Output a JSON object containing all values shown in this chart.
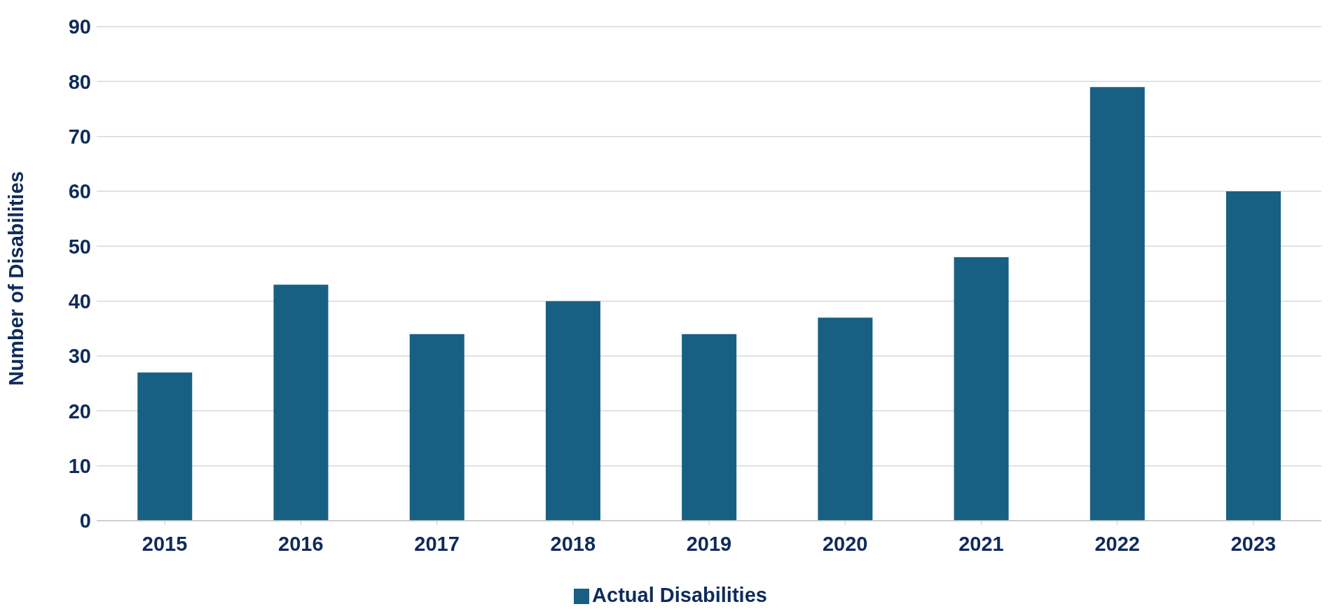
{
  "chart_data": {
    "type": "bar",
    "ylabel": "Number of Disabilities",
    "categories": [
      "2015",
      "2016",
      "2017",
      "2018",
      "2019",
      "2020",
      "2021",
      "2022",
      "2023"
    ],
    "series": [
      {
        "name": "Actual Disabilities",
        "color": "#176083",
        "values": [
          27,
          43,
          34,
          40,
          34,
          37,
          48,
          79,
          60
        ]
      }
    ],
    "ylim": [
      0,
      90
    ],
    "yticks": [
      0,
      10,
      20,
      30,
      40,
      50,
      60,
      70,
      80,
      90
    ],
    "grid": "y",
    "legend": "bottom"
  }
}
